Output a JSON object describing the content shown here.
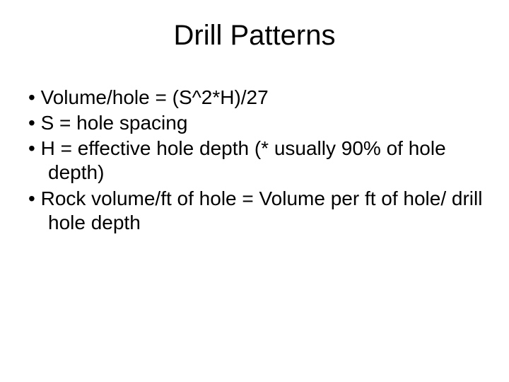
{
  "slide": {
    "title": "Drill Patterns",
    "bullets": [
      "Volume/hole = (S^2*H)/27",
      "S = hole spacing",
      "H = effective hole depth (* usually 90% of hole depth)",
      "Rock volume/ft of hole = Volume per ft of hole/ drill hole depth"
    ],
    "colors": {
      "background": "#ffffff",
      "text": "#000000"
    },
    "typography": {
      "title_fontsize_pt": 40,
      "body_fontsize_pt": 28,
      "font_family": "Arial"
    }
  }
}
